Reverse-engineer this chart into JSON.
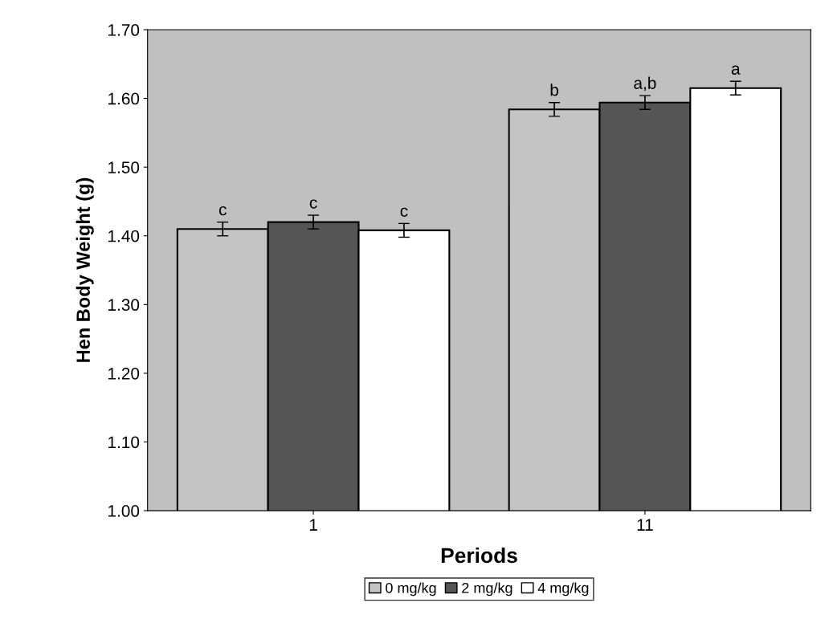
{
  "chart_data": {
    "type": "bar",
    "ylabel": "Hen Body Weight (g)",
    "xlabel": "Periods",
    "categories": [
      "1",
      "11"
    ],
    "series": [
      {
        "name": "0 mg/kg",
        "color": "#c4c4c4",
        "values": [
          1.41,
          1.584
        ],
        "errors": [
          0.01,
          0.01
        ],
        "value_labels": [
          "c",
          "b"
        ]
      },
      {
        "name": "2 mg/kg",
        "color": "#555555",
        "values": [
          1.42,
          1.594
        ],
        "errors": [
          0.01,
          0.01
        ],
        "value_labels": [
          "c",
          "a,b"
        ]
      },
      {
        "name": "4 mg/kg",
        "color": "#ffffff",
        "values": [
          1.408,
          1.615
        ],
        "errors": [
          0.01,
          0.01
        ],
        "value_labels": [
          "c",
          "a"
        ]
      }
    ],
    "ylim": [
      1.0,
      1.7
    ],
    "yticks": [
      {
        "value": 1.0,
        "label": "1.00"
      },
      {
        "value": 1.1,
        "label": "1.10"
      },
      {
        "value": 1.2,
        "label": "1.20"
      },
      {
        "value": 1.3,
        "label": "1.30"
      },
      {
        "value": 1.4,
        "label": "1.40"
      },
      {
        "value": 1.5,
        "label": "1.50"
      },
      {
        "value": 1.6,
        "label": "1.60"
      },
      {
        "value": 1.7,
        "label": "1.70"
      }
    ],
    "grid": false,
    "legend": "bottom"
  }
}
